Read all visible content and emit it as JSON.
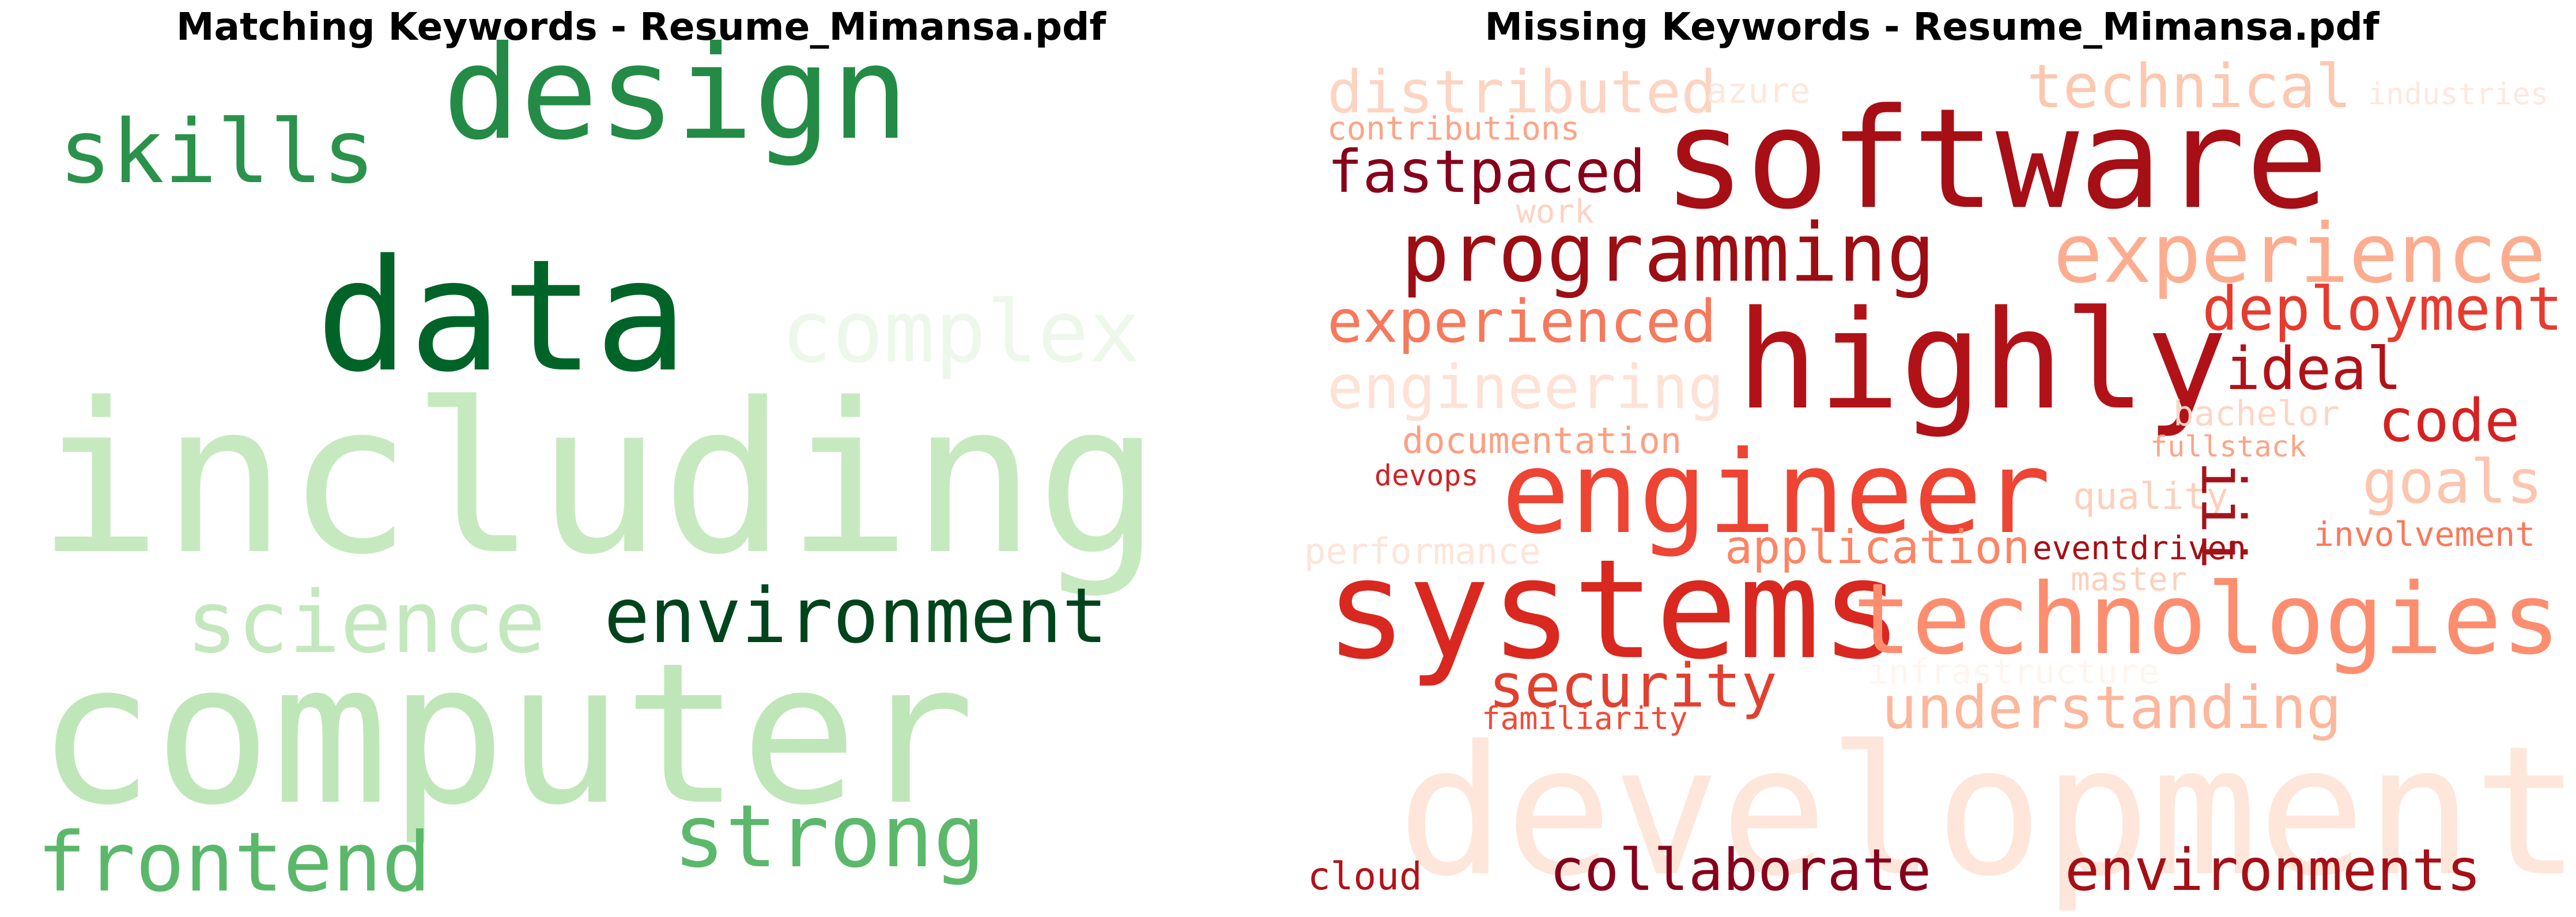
{
  "panels": [
    {
      "id": "matching",
      "title": "Matching Keywords - Resume_Mimansa.pdf",
      "words": [
        {
          "text": "design",
          "color": "#238b45"
        },
        {
          "text": "skills",
          "color": "#2a924a"
        },
        {
          "text": "data",
          "color": "#006428"
        },
        {
          "text": "complex",
          "color": "#edf8ea"
        },
        {
          "text": "including",
          "color": "#c7e9c0"
        },
        {
          "text": "science",
          "color": "#c4e8bd"
        },
        {
          "text": "environment",
          "color": "#00441b"
        },
        {
          "text": "computer",
          "color": "#bfe6b8"
        },
        {
          "text": "frontend",
          "color": "#5bb86a"
        },
        {
          "text": "strong",
          "color": "#5cb86b"
        }
      ]
    },
    {
      "id": "missing",
      "title": "Missing Keywords - Resume_Mimansa.pdf",
      "words": [
        {
          "text": "distributed",
          "color": "#fdd4c2"
        },
        {
          "text": "azure",
          "color": "#fee8dd"
        },
        {
          "text": "technical",
          "color": "#fcc8b0"
        },
        {
          "text": "industries",
          "color": "#fee8dd"
        },
        {
          "text": "contributions",
          "color": "#fca487"
        },
        {
          "text": "software",
          "color": "#a50f15"
        },
        {
          "text": "fastpaced",
          "color": "#86001c"
        },
        {
          "text": "work",
          "color": "#fdd3c1"
        },
        {
          "text": "programming",
          "color": "#9d0d14"
        },
        {
          "text": "experience",
          "color": "#fcad90"
        },
        {
          "text": "experienced",
          "color": "#f6795b"
        },
        {
          "text": "deployment",
          "color": "#e63b2e"
        },
        {
          "text": "highly",
          "color": "#b11218"
        },
        {
          "text": "ideal",
          "color": "#b11218"
        },
        {
          "text": "engineering",
          "color": "#fee2d5"
        },
        {
          "text": "bachelor",
          "color": "#fdd6c4"
        },
        {
          "text": "code",
          "color": "#d52221"
        },
        {
          "text": "documentation",
          "color": "#fca082"
        },
        {
          "text": "fullstack",
          "color": "#fca487"
        },
        {
          "text": "engineer",
          "color": "#ee4433"
        },
        {
          "text": "devops",
          "color": "#d02224"
        },
        {
          "text": "goals",
          "color": "#fdc5ae"
        },
        {
          "text": "quality",
          "color": "#fdd0bc"
        },
        {
          "text": "iii",
          "color": "#a3141a"
        },
        {
          "text": "performance",
          "color": "#fee5d9"
        },
        {
          "text": "application",
          "color": "#fc8565"
        },
        {
          "text": "eventdriven",
          "color": "#a50f15"
        },
        {
          "text": "involvement",
          "color": "#fb7858"
        },
        {
          "text": "master",
          "color": "#fdd0bc"
        },
        {
          "text": "systems",
          "color": "#d9281f"
        },
        {
          "text": "technologies",
          "color": "#fc8e6f"
        },
        {
          "text": "infrastructure",
          "color": "#fff5f0"
        },
        {
          "text": "security",
          "color": "#e2402f"
        },
        {
          "text": "understanding",
          "color": "#fcb79c"
        },
        {
          "text": "familiarity",
          "color": "#f24a36"
        },
        {
          "text": "development",
          "color": "#fee6da"
        },
        {
          "text": "cloud",
          "color": "#b11218"
        },
        {
          "text": "collaborate",
          "color": "#86001c"
        },
        {
          "text": "environments",
          "color": "#a50f15"
        }
      ]
    }
  ]
}
